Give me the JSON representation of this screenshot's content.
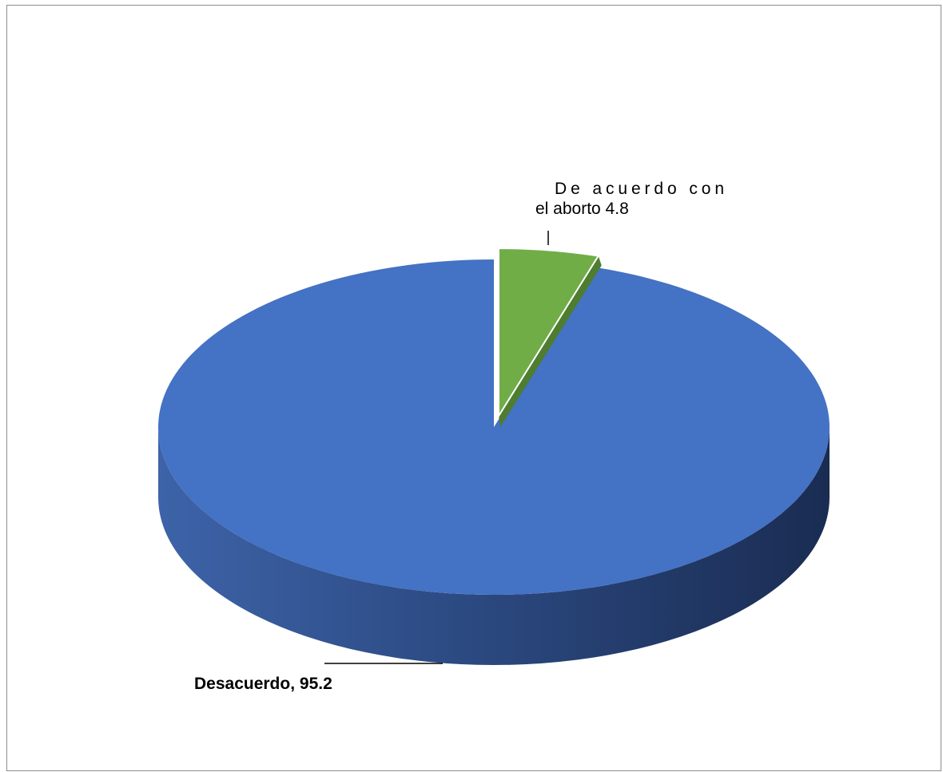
{
  "chart_data": {
    "type": "pie",
    "title": "",
    "slices": [
      {
        "name": "De acuerdo con el aborto",
        "value": 4.8,
        "color": "#70ad47"
      },
      {
        "name": "Desacuerdo",
        "value": 95.2,
        "color": "#4472c4"
      }
    ],
    "data_labels": {
      "acuerdo_line1": "De acuerdo con",
      "acuerdo_line2": "el aborto 4.8",
      "desacuerdo": "Desacuerdo, 95.2"
    },
    "legend": "none",
    "style": "3d-exploded"
  }
}
